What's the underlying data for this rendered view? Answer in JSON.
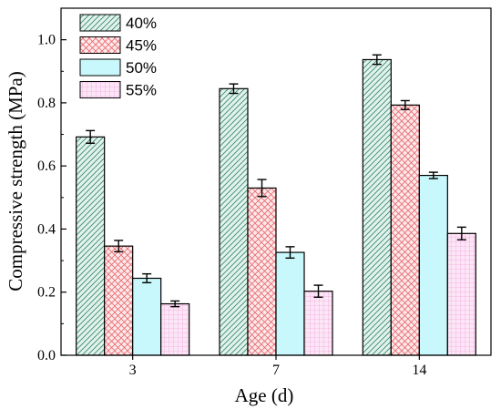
{
  "chart_data": {
    "type": "bar",
    "title": "",
    "xlabel": "Age (d)",
    "ylabel": "Compressive strength (MPa)",
    "categories": [
      "3",
      "7",
      "14"
    ],
    "ylim": [
      0.0,
      1.1
    ],
    "yticks": [
      "0.0",
      "0.2",
      "0.4",
      "0.6",
      "0.8",
      "1.0"
    ],
    "grid": false,
    "legend_position": "top-left",
    "series": [
      {
        "name": "40%",
        "values": [
          0.692,
          0.845,
          0.937
        ],
        "errors": [
          0.02,
          0.015,
          0.015
        ],
        "color": "#3d8a70",
        "fill": "#e2f2ec",
        "pattern": "diagonal"
      },
      {
        "name": "45%",
        "values": [
          0.346,
          0.53,
          0.793
        ],
        "errors": [
          0.018,
          0.027,
          0.014
        ],
        "color": "#e8676d",
        "fill": "#fde9ea",
        "pattern": "crosshatch"
      },
      {
        "name": "50%",
        "values": [
          0.244,
          0.326,
          0.57
        ],
        "errors": [
          0.014,
          0.018,
          0.01
        ],
        "color": "#43c9d6",
        "fill": "#c8f8fb",
        "pattern": "none"
      },
      {
        "name": "55%",
        "values": [
          0.163,
          0.203,
          0.386
        ],
        "errors": [
          0.009,
          0.019,
          0.02
        ],
        "color": "#ee8fd9",
        "fill": "#fce6f6",
        "pattern": "grid"
      }
    ]
  }
}
